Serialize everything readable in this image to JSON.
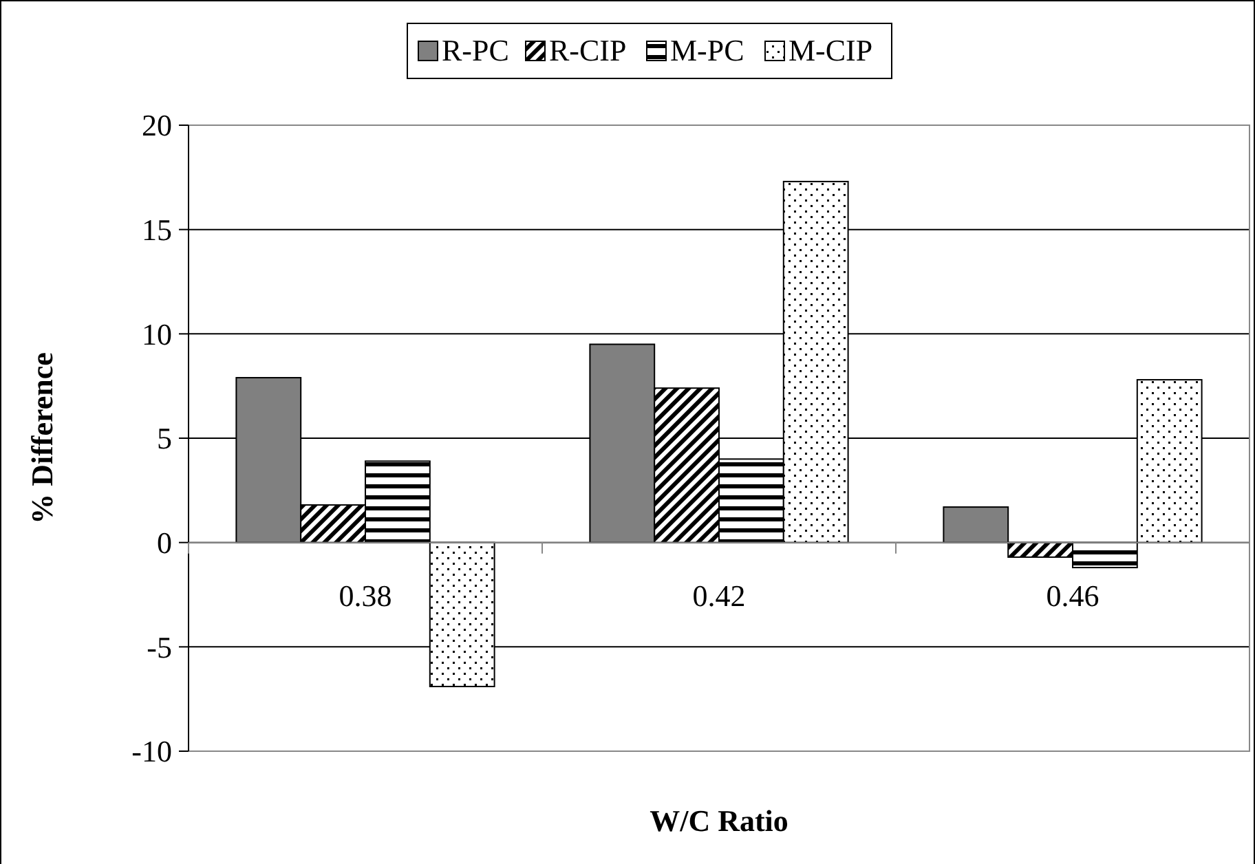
{
  "chart_data": {
    "type": "bar",
    "xlabel": "W/C Ratio",
    "ylabel": "% Difference",
    "categories": [
      "0.38",
      "0.42",
      "0.46"
    ],
    "series": [
      {
        "name": "R-PC",
        "color": "#808080",
        "values": [
          7.9,
          9.5,
          1.7
        ]
      },
      {
        "name": "R-CIP",
        "color": "#000000",
        "values": [
          1.8,
          7.4,
          -0.7
        ]
      },
      {
        "name": "M-PC",
        "color": "#000000",
        "values": [
          3.9,
          4.0,
          -1.2
        ]
      },
      {
        "name": "M-CIP",
        "color": "#000000",
        "values": [
          -6.9,
          17.3,
          7.8
        ]
      }
    ],
    "ylim": [
      -10,
      20
    ],
    "yticks": [
      -10,
      -5,
      0,
      5,
      10,
      15,
      20
    ],
    "grid": "y",
    "legend": "top"
  }
}
